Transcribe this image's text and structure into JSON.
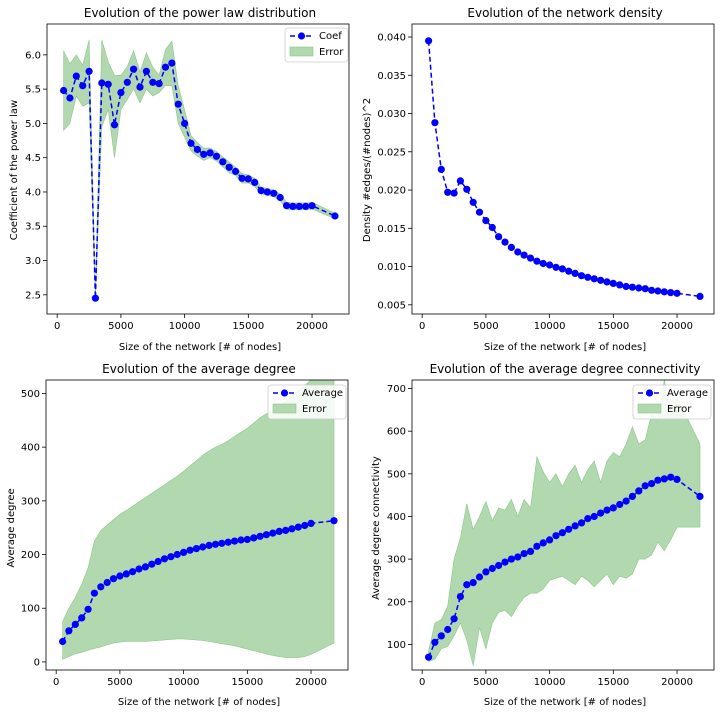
{
  "chart_data": [
    {
      "type": "line",
      "title": "Evolution of the power law distribution",
      "xlabel": "Size of the network [# of nodes]",
      "ylabel": "Coefficient of the power law",
      "xlim": [
        -800,
        22900
      ],
      "ylim": [
        2.22,
        6.45
      ],
      "xticks": [
        0,
        5000,
        10000,
        15000,
        20000
      ],
      "yticks": [
        2.5,
        3.0,
        3.5,
        4.0,
        4.5,
        5.0,
        5.5,
        6.0
      ],
      "tick_format": "decimal1",
      "legend_position": "top-right",
      "x": [
        500,
        1000,
        1500,
        2000,
        2500,
        3000,
        3500,
        4000,
        4500,
        5000,
        5500,
        6000,
        6500,
        7000,
        7500,
        8000,
        8500,
        9000,
        9500,
        10000,
        10500,
        11000,
        11500,
        12000,
        12500,
        13000,
        13500,
        14000,
        14500,
        15000,
        15500,
        16000,
        16500,
        17000,
        17500,
        18000,
        18500,
        19000,
        19500,
        20000,
        21800
      ],
      "series": [
        {
          "name": "Coef",
          "values": [
            5.48,
            5.37,
            5.69,
            5.55,
            5.76,
            2.45,
            5.59,
            5.57,
            4.98,
            5.45,
            5.6,
            5.79,
            5.53,
            5.76,
            5.6,
            5.58,
            5.82,
            5.88,
            5.28,
            5.0,
            4.71,
            4.62,
            4.55,
            4.57,
            4.52,
            4.44,
            4.36,
            4.3,
            4.2,
            4.19,
            4.14,
            4.02,
            4.0,
            3.98,
            3.92,
            3.8,
            3.79,
            3.79,
            3.79,
            3.8,
            3.65
          ]
        },
        {
          "name": "Error",
          "kind": "band",
          "upper": [
            6.06,
            5.87,
            6.0,
            5.85,
            6.22,
            2.45,
            6.22,
            5.9,
            5.7,
            5.7,
            5.83,
            6.06,
            5.75,
            6.03,
            5.82,
            5.7,
            6.08,
            6.2,
            5.55,
            5.2,
            4.82,
            4.72,
            4.64,
            4.64,
            4.59,
            4.51,
            4.44,
            4.36,
            4.27,
            4.25,
            4.2,
            4.07,
            4.05,
            4.03,
            3.97,
            3.85,
            3.84,
            3.84,
            3.84,
            3.85,
            3.69
          ],
          "lower": [
            4.9,
            5.0,
            5.4,
            5.25,
            5.3,
            2.45,
            4.95,
            5.2,
            4.5,
            5.2,
            5.35,
            5.5,
            5.3,
            5.5,
            5.4,
            5.45,
            5.55,
            5.55,
            5.0,
            4.8,
            4.6,
            4.52,
            4.46,
            4.5,
            4.45,
            4.37,
            4.28,
            4.24,
            4.13,
            4.13,
            4.08,
            3.97,
            3.95,
            3.93,
            3.87,
            3.75,
            3.74,
            3.74,
            3.74,
            3.75,
            3.61
          ]
        }
      ]
    },
    {
      "type": "line",
      "title": "Evolution of the network density",
      "xlabel": "Size of the network [# of nodes]",
      "ylabel": "Density #edges/(#nodes)^2",
      "xlim": [
        -800,
        22900
      ],
      "ylim": [
        0.0038,
        0.0417
      ],
      "xticks": [
        0,
        5000,
        10000,
        15000,
        20000
      ],
      "yticks": [
        0.005,
        0.01,
        0.015,
        0.02,
        0.025,
        0.03,
        0.035,
        0.04
      ],
      "tick_format": "decimal3",
      "x": [
        500,
        1000,
        1500,
        2000,
        2500,
        3000,
        3500,
        4000,
        4500,
        5000,
        5500,
        6000,
        6500,
        7000,
        7500,
        8000,
        8500,
        9000,
        9500,
        10000,
        10500,
        11000,
        11500,
        12000,
        12500,
        13000,
        13500,
        14000,
        14500,
        15000,
        15500,
        16000,
        16500,
        17000,
        17500,
        18000,
        18500,
        19000,
        19500,
        20000,
        21800
      ],
      "series": [
        {
          "values": [
            0.0395,
            0.0288,
            0.0227,
            0.0197,
            0.0196,
            0.0212,
            0.0201,
            0.0184,
            0.0171,
            0.016,
            0.0151,
            0.0139,
            0.0132,
            0.0125,
            0.0119,
            0.0115,
            0.0111,
            0.0107,
            0.0104,
            0.0102,
            0.0099,
            0.0097,
            0.0094,
            0.0091,
            0.0088,
            0.0086,
            0.0084,
            0.0082,
            0.008,
            0.0078,
            0.0076,
            0.0074,
            0.0073,
            0.0072,
            0.0071,
            0.0069,
            0.0068,
            0.0067,
            0.0066,
            0.0065,
            0.0061
          ]
        }
      ]
    },
    {
      "type": "line",
      "title": "Evolution of the average degree",
      "xlabel": "Size of the network [# of nodes]",
      "ylabel": "Average degree",
      "xlim": [
        -800,
        22900
      ],
      "ylim": [
        -15,
        525
      ],
      "xticks": [
        0,
        5000,
        10000,
        15000,
        20000
      ],
      "yticks": [
        0,
        100,
        200,
        300,
        400,
        500
      ],
      "tick_format": "integer",
      "legend_position": "top-right",
      "x": [
        500,
        1000,
        1500,
        2000,
        2500,
        3000,
        3500,
        4000,
        4500,
        5000,
        5500,
        6000,
        6500,
        7000,
        7500,
        8000,
        8500,
        9000,
        9500,
        10000,
        10500,
        11000,
        11500,
        12000,
        12500,
        13000,
        13500,
        14000,
        14500,
        15000,
        15500,
        16000,
        16500,
        17000,
        17500,
        18000,
        18500,
        19000,
        19500,
        20000,
        21800
      ],
      "series": [
        {
          "name": "Average",
          "values": [
            38,
            58,
            70,
            82,
            98,
            128,
            140,
            148,
            155,
            160,
            164,
            168,
            173,
            177,
            182,
            187,
            192,
            196,
            200,
            204,
            208,
            211,
            214,
            217,
            219,
            221,
            223,
            225,
            227,
            228,
            231,
            234,
            237,
            240,
            243,
            245,
            248,
            251,
            254,
            258,
            263
          ]
        },
        {
          "name": "Error",
          "kind": "band",
          "upper": [
            75,
            100,
            120,
            145,
            175,
            225,
            245,
            255,
            265,
            275,
            282,
            290,
            298,
            306,
            314,
            322,
            330,
            338,
            346,
            355,
            365,
            375,
            385,
            393,
            400,
            405,
            412,
            420,
            428,
            435,
            445,
            455,
            462,
            468,
            475,
            485,
            495,
            505,
            515,
            525,
            525
          ],
          "lower": [
            5,
            10,
            15,
            18,
            22,
            25,
            28,
            32,
            35,
            37,
            38,
            38,
            38,
            38,
            39,
            40,
            41,
            42,
            43,
            43,
            42,
            41,
            40,
            38,
            36,
            34,
            32,
            30,
            27,
            24,
            21,
            18,
            15,
            12,
            10,
            8,
            8,
            8,
            10,
            14,
            35
          ]
        }
      ]
    },
    {
      "type": "line",
      "title": "Evolution of the average degree connectivity",
      "xlabel": "Size of the network [# of nodes]",
      "ylabel": "Average degree connectivity",
      "xlim": [
        -800,
        22900
      ],
      "ylim": [
        40,
        720
      ],
      "xticks": [
        0,
        5000,
        10000,
        15000,
        20000
      ],
      "yticks": [
        100,
        200,
        300,
        400,
        500,
        600,
        700
      ],
      "tick_format": "integer",
      "legend_position": "top-right",
      "x": [
        500,
        1000,
        1500,
        2000,
        2500,
        3000,
        3500,
        4000,
        4500,
        5000,
        5500,
        6000,
        6500,
        7000,
        7500,
        8000,
        8500,
        9000,
        9500,
        10000,
        10500,
        11000,
        11500,
        12000,
        12500,
        13000,
        13500,
        14000,
        14500,
        15000,
        15500,
        16000,
        16500,
        17000,
        17500,
        18000,
        18500,
        19000,
        19500,
        20000,
        21800
      ],
      "series": [
        {
          "name": "Average",
          "values": [
            70,
            105,
            120,
            135,
            160,
            212,
            240,
            245,
            258,
            270,
            278,
            285,
            293,
            300,
            305,
            313,
            318,
            330,
            338,
            345,
            355,
            362,
            370,
            378,
            385,
            395,
            400,
            408,
            415,
            420,
            428,
            436,
            447,
            460,
            472,
            477,
            485,
            488,
            492,
            487,
            447
          ]
        },
        {
          "name": "Error",
          "kind": "band",
          "upper": [
            85,
            150,
            158,
            190,
            300,
            350,
            430,
            370,
            400,
            435,
            390,
            420,
            415,
            440,
            400,
            440,
            420,
            540,
            505,
            480,
            500,
            470,
            500,
            520,
            480,
            510,
            530,
            480,
            530,
            550,
            540,
            570,
            610,
            570,
            580,
            640,
            630,
            720,
            650,
            680,
            570
          ],
          "lower": [
            60,
            65,
            90,
            95,
            120,
            150,
            110,
            50,
            140,
            90,
            150,
            175,
            180,
            165,
            190,
            210,
            220,
            220,
            230,
            250,
            255,
            260,
            250,
            240,
            260,
            250,
            235,
            250,
            265,
            240,
            260,
            255,
            265,
            300,
            300,
            310,
            340,
            320,
            345,
            375,
            375
          ]
        }
      ]
    }
  ]
}
